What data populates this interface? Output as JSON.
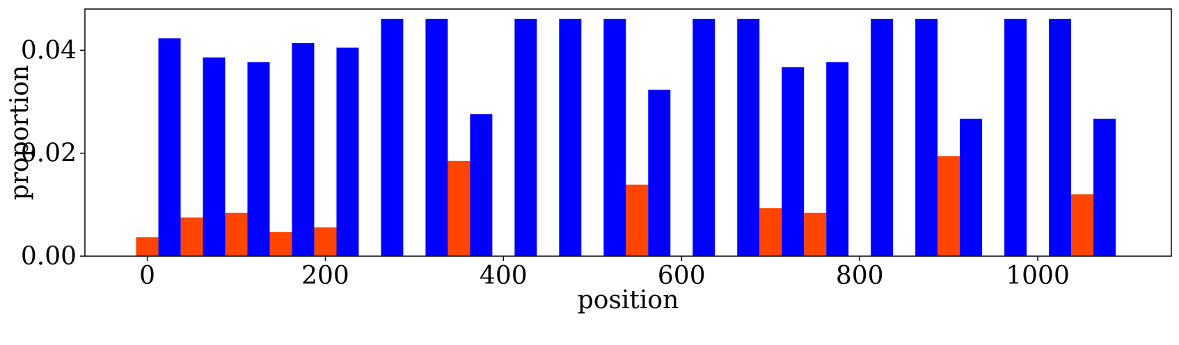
{
  "chart_data": {
    "type": "bar",
    "xlabel": "position",
    "ylabel": "proportion",
    "xlim": [
      -70,
      1150
    ],
    "ylim": [
      0,
      0.048
    ],
    "x_ticks": [
      0,
      200,
      400,
      600,
      800,
      1000
    ],
    "x_tick_labels": [
      "0",
      "200",
      "400",
      "600",
      "800",
      "1000"
    ],
    "y_ticks": [
      0.0,
      0.02,
      0.04
    ],
    "y_tick_labels": [
      "0.00",
      "0.02",
      "0.04"
    ],
    "bar_width": 25,
    "series": [
      {
        "color": "#ff4500",
        "x": [
          0,
          50,
          100,
          150,
          200,
          250,
          300,
          350,
          400,
          450,
          500,
          550,
          600,
          650,
          700,
          750,
          800,
          850,
          900,
          950,
          1000,
          1050
        ],
        "values": [
          0.0037,
          0.0075,
          0.0084,
          0.0047,
          0.0056,
          0,
          0,
          0.0185,
          0,
          0,
          0,
          0.0139,
          0,
          0,
          0.0093,
          0.0084,
          0,
          0,
          0.0194,
          0,
          0,
          0.012
        ]
      },
      {
        "color": "#0000ff",
        "x": [
          25,
          75,
          125,
          175,
          225,
          275,
          325,
          375,
          425,
          475,
          525,
          575,
          625,
          675,
          725,
          775,
          825,
          875,
          925,
          975,
          1025,
          1075
        ],
        "values": [
          0.0423,
          0.0386,
          0.0377,
          0.0414,
          0.0405,
          0.0461,
          0.0461,
          0.0276,
          0.0461,
          0.0461,
          0.0461,
          0.0323,
          0.0461,
          0.0461,
          0.0367,
          0.0377,
          0.0461,
          0.0461,
          0.0267,
          0.0461,
          0.0461,
          0.0267
        ]
      }
    ],
    "grid": false,
    "legend": "none"
  }
}
